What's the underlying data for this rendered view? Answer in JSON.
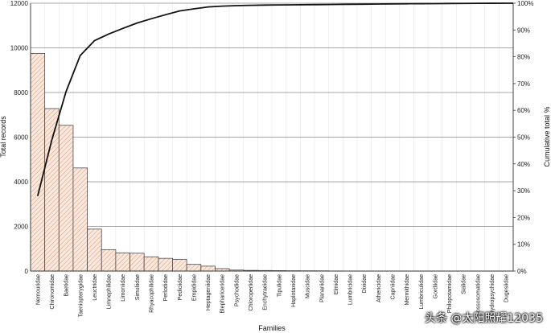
{
  "chart_data": {
    "type": "bar",
    "xlabel": "Families",
    "ylabel": "Total records",
    "y2label": "Cumulative total %",
    "ylim": [
      0,
      12000
    ],
    "yticks": [
      0,
      2000,
      4000,
      6000,
      8000,
      10000,
      12000
    ],
    "y2lim": [
      0,
      100
    ],
    "y2ticks": [
      "0%",
      "10%",
      "20%",
      "30%",
      "40%",
      "50%",
      "60%",
      "70%",
      "80%",
      "90%",
      "100%"
    ],
    "grid": true,
    "categories": [
      "Nemouridae",
      "Chironomidae",
      "Baetidae",
      "Taeniopterygidae",
      "Leuctridae",
      "Limnephilidae",
      "Limoniidae",
      "Simuliidae",
      "Rhyacophilidae",
      "Perlodidae",
      "Pediciidae",
      "Empididae",
      "Heptageniidae",
      "Blephariceridae",
      "Psychodidae",
      "Chloroperlidae",
      "Enchytraeidae",
      "Tipulidae",
      "Haplotaxidae",
      "Muscidae",
      "Planariidae",
      "Elmidae",
      "Lumbricidae",
      "Dixidae",
      "Athericidae",
      "Capniidae",
      "Mermithidae",
      "Lumbriculidae",
      "Gordiidae",
      "Philopotamidae",
      "Sialidae",
      "Glossosomatidae",
      "Hydropsychidae",
      "Dugesiidae"
    ],
    "series": [
      {
        "name": "Total records",
        "values": [
          9750,
          7280,
          6530,
          4620,
          1880,
          960,
          810,
          800,
          640,
          570,
          520,
          300,
          220,
          110,
          45,
          30,
          25,
          20,
          15,
          12,
          10,
          5,
          4,
          3,
          3,
          2,
          2,
          2,
          1,
          1,
          1,
          1,
          1,
          1
        ]
      },
      {
        "name": "Cumulative total %",
        "values": [
          28,
          49,
          67,
          80.5,
          86,
          88.5,
          90.6,
          92.6,
          94.2,
          95.7,
          97.1,
          97.9,
          98.6,
          98.9,
          99.1,
          99.2,
          99.3,
          99.35,
          99.4,
          99.45,
          99.5,
          99.55,
          99.6,
          99.65,
          99.7,
          99.75,
          99.8,
          99.83,
          99.86,
          99.9,
          99.93,
          99.96,
          99.98,
          100
        ]
      }
    ]
  },
  "watermark": "头条 @太阳照耀12035"
}
